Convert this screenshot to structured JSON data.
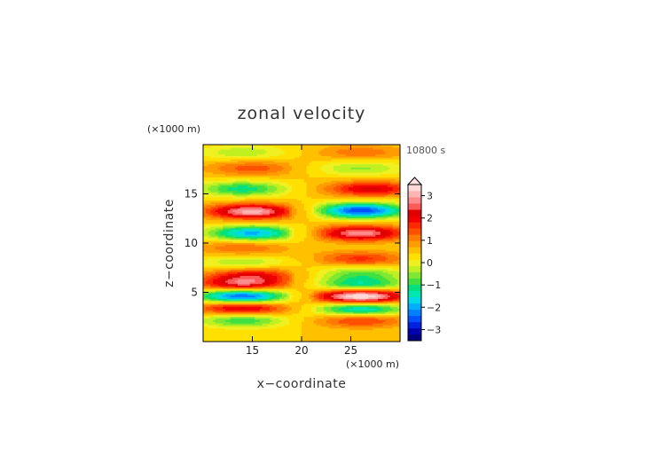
{
  "chart_data": {
    "type": "heatmap",
    "title": "zonal velocity",
    "xlabel": "x−coordinate",
    "ylabel": "z−coordinate",
    "x_unit": "(×1000 m)",
    "z_unit": "(×1000 m)",
    "time_label": "10800 s",
    "xlim": [
      10,
      30
    ],
    "zlim": [
      0,
      20
    ],
    "x_ticks": [
      15,
      20,
      25
    ],
    "z_ticks": [
      5,
      10,
      15
    ],
    "colorbar": {
      "min": -3.5,
      "max": 3.5,
      "step": 0.25,
      "ticks": [
        "3",
        "2",
        "1",
        "0",
        "−1",
        "−2",
        "−3"
      ],
      "tick_values": [
        3,
        2,
        1,
        0,
        -1,
        -2,
        -3
      ],
      "extend": "max",
      "colors": [
        "#000080",
        "#0000b0",
        "#0020e0",
        "#0050ff",
        "#0080ff",
        "#00b0ff",
        "#00d8e8",
        "#00e8b0",
        "#00e080",
        "#40e040",
        "#80e830",
        "#c0f020",
        "#f0f020",
        "#ffe000",
        "#ffc000",
        "#ff9c00",
        "#ff7a00",
        "#ff5000",
        "#ff2800",
        "#f00000",
        "#e00000",
        "#ff5a5a",
        "#ff8c8c",
        "#ffb4b4",
        "#ffd8d8"
      ]
    },
    "features": [
      {
        "x": 15,
        "z": 13.2,
        "value": 2.4
      },
      {
        "x": 26,
        "z": 13.3,
        "value": -2.7
      },
      {
        "x": 15,
        "z": 11.0,
        "value": -2.1
      },
      {
        "x": 26,
        "z": 11.0,
        "value": 2.2
      },
      {
        "x": 14,
        "z": 15.5,
        "value": -1.4
      },
      {
        "x": 27,
        "z": 15.5,
        "value": 1.6
      },
      {
        "x": 14,
        "z": 9.5,
        "value": 0.8
      },
      {
        "x": 26,
        "z": 8.4,
        "value": 1.1
      },
      {
        "x": 14,
        "z": 8.0,
        "value": -0.8
      },
      {
        "x": 15,
        "z": 6.8,
        "value": 1.3
      },
      {
        "x": 26,
        "z": 6.9,
        "value": -1.0
      },
      {
        "x": 14,
        "z": 5.8,
        "value": 1.9
      },
      {
        "x": 26,
        "z": 5.7,
        "value": -1.6
      },
      {
        "x": 14,
        "z": 4.6,
        "value": -2.8
      },
      {
        "x": 26,
        "z": 4.6,
        "value": 3.1
      },
      {
        "x": 14,
        "z": 3.4,
        "value": 1.9
      },
      {
        "x": 26,
        "z": 3.3,
        "value": -2.0
      },
      {
        "x": 14,
        "z": 2.2,
        "value": -1.3
      },
      {
        "x": 26,
        "z": 2.2,
        "value": 1.2
      },
      {
        "x": 15,
        "z": 17.6,
        "value": 0.9
      },
      {
        "x": 26,
        "z": 17.6,
        "value": -0.8
      },
      {
        "x": 14,
        "z": 19.2,
        "value": -0.7
      },
      {
        "x": 26,
        "z": 19.2,
        "value": 0.7
      }
    ]
  }
}
